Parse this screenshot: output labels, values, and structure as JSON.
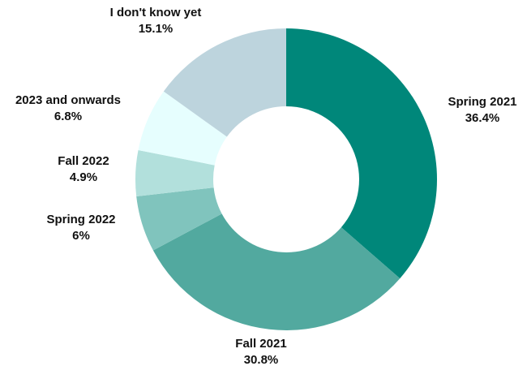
{
  "chart_data": {
    "type": "pie",
    "donut": true,
    "start_angle_deg": 0,
    "direction": "clockwise",
    "slices": [
      {
        "label": "Spring 2021",
        "value": 36.4,
        "value_label": "36.4%",
        "color": "#00877a"
      },
      {
        "label": "Fall 2021",
        "value": 30.8,
        "value_label": "30.8%",
        "color": "#52a99f"
      },
      {
        "label": "Spring 2022",
        "value": 6,
        "value_label": "6%",
        "color": "#80c4bd"
      },
      {
        "label": "Fall 2022",
        "value": 4.9,
        "value_label": "4.9%",
        "color": "#b2e0dc"
      },
      {
        "label": "2023 and onwards",
        "value": 6.8,
        "value_label": "6.8%",
        "color": "#e6fefe"
      },
      {
        "label": "I don't know yet",
        "value": 15.1,
        "value_label": "15.1%",
        "color": "#bdd4dd"
      }
    ]
  }
}
